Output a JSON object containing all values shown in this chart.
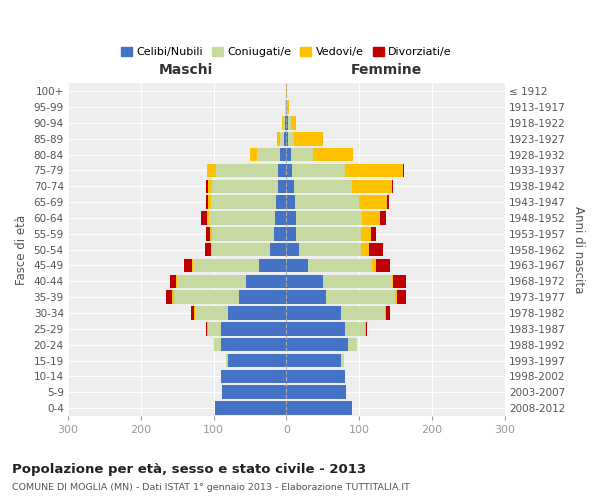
{
  "age_groups": [
    "0-4",
    "5-9",
    "10-14",
    "15-19",
    "20-24",
    "25-29",
    "30-34",
    "35-39",
    "40-44",
    "45-49",
    "50-54",
    "55-59",
    "60-64",
    "65-69",
    "70-74",
    "75-79",
    "80-84",
    "85-89",
    "90-94",
    "95-99",
    "100+"
  ],
  "birth_years": [
    "2008-2012",
    "2003-2007",
    "1998-2002",
    "1993-1997",
    "1988-1992",
    "1983-1987",
    "1978-1982",
    "1973-1977",
    "1968-1972",
    "1963-1967",
    "1958-1962",
    "1953-1957",
    "1948-1952",
    "1943-1947",
    "1938-1942",
    "1933-1937",
    "1928-1932",
    "1923-1927",
    "1918-1922",
    "1913-1917",
    "≤ 1912"
  ],
  "maschi": {
    "celibi": [
      98,
      88,
      90,
      80,
      90,
      90,
      80,
      65,
      55,
      38,
      22,
      17,
      16,
      14,
      12,
      12,
      8,
      3,
      2,
      1,
      1
    ],
    "coniugati": [
      0,
      0,
      0,
      3,
      10,
      18,
      45,
      90,
      95,
      90,
      80,
      85,
      90,
      90,
      90,
      85,
      32,
      5,
      3,
      1,
      0
    ],
    "vedovi": [
      0,
      0,
      0,
      0,
      0,
      1,
      2,
      2,
      2,
      2,
      2,
      3,
      3,
      3,
      5,
      12,
      10,
      5,
      1,
      0,
      0
    ],
    "divorziati": [
      0,
      0,
      0,
      0,
      0,
      2,
      4,
      8,
      8,
      10,
      8,
      6,
      8,
      3,
      3,
      0,
      0,
      0,
      0,
      0,
      0
    ]
  },
  "femmine": {
    "nubili": [
      90,
      82,
      80,
      75,
      85,
      80,
      75,
      55,
      50,
      30,
      18,
      14,
      14,
      12,
      10,
      8,
      6,
      3,
      2,
      0,
      0
    ],
    "coniugate": [
      0,
      0,
      0,
      4,
      12,
      28,
      60,
      95,
      95,
      88,
      85,
      88,
      90,
      88,
      80,
      72,
      30,
      8,
      4,
      1,
      0
    ],
    "vedove": [
      0,
      0,
      0,
      0,
      0,
      1,
      2,
      2,
      2,
      5,
      10,
      15,
      25,
      38,
      55,
      80,
      55,
      40,
      8,
      3,
      1
    ],
    "divorziate": [
      0,
      0,
      0,
      0,
      0,
      2,
      5,
      12,
      18,
      20,
      20,
      6,
      8,
      3,
      2,
      2,
      0,
      0,
      0,
      0,
      0
    ]
  },
  "colors": {
    "celibi": "#4472c4",
    "coniugati": "#c5d9a0",
    "vedovi": "#ffc000",
    "divorziati": "#c00000"
  },
  "title": "Popolazione per età, sesso e stato civile - 2013",
  "subtitle": "COMUNE DI MOGLIA (MN) - Dati ISTAT 1° gennaio 2013 - Elaborazione TUTTITALIA.IT",
  "xlabel_left": "Maschi",
  "xlabel_right": "Femmine",
  "ylabel_left": "Fasce di età",
  "ylabel_right": "Anni di nascita",
  "legend_labels": [
    "Celibi/Nubili",
    "Coniugati/e",
    "Vedovi/e",
    "Divorziati/e"
  ],
  "xlim": 300,
  "bg_color": "#ffffff",
  "plot_bg": "#eeeeee",
  "grid_color": "#ffffff"
}
